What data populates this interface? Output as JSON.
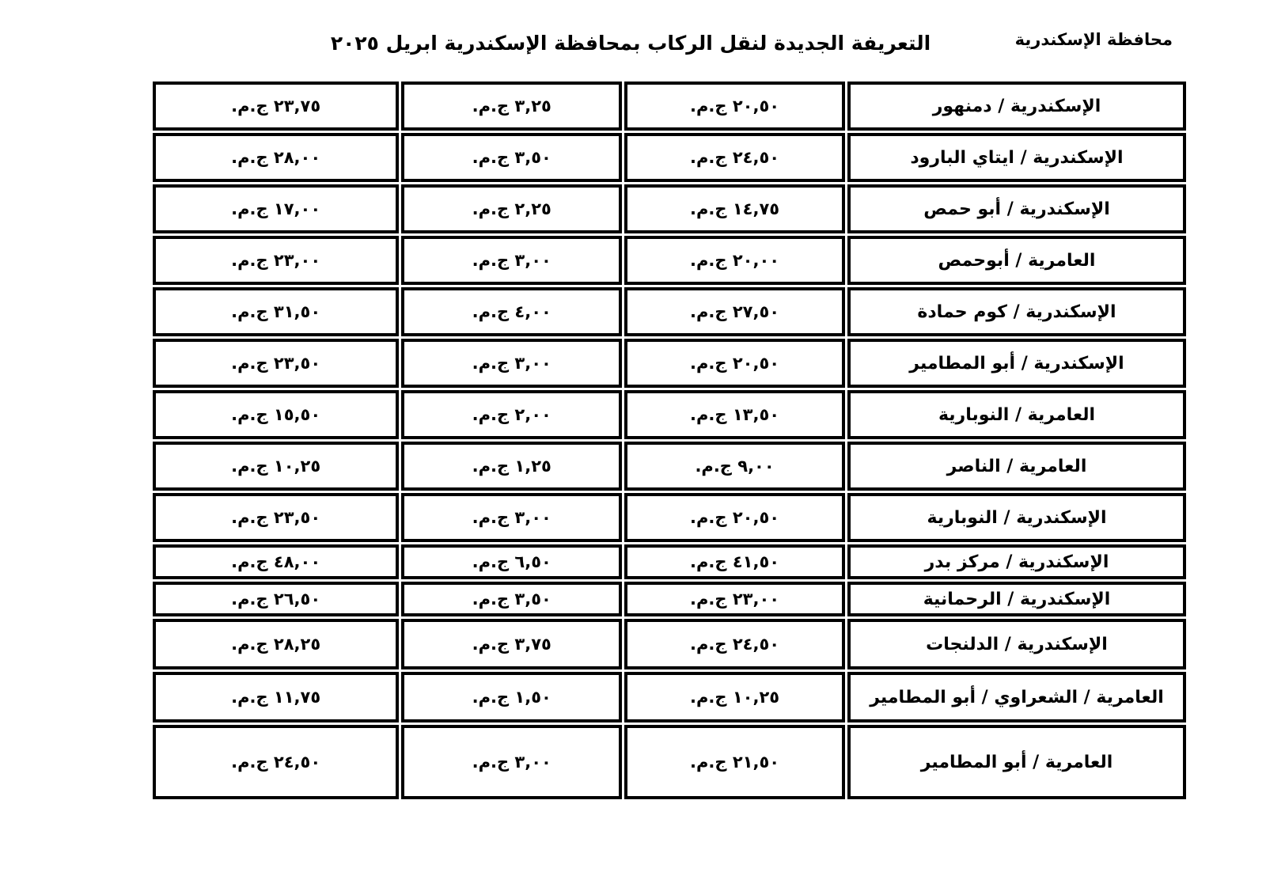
{
  "page": {
    "governorate": "محافظة الإسكندرية",
    "title": "التعريفة الجديدة لنقل الركاب بمحافظة الإسكندرية ابريل ٢٠٢٥"
  },
  "table": {
    "rows": [
      {
        "route": "الإسكندرية / دمنهور",
        "prices": [
          "٢٠,٥٠ ج.م.",
          "٣,٢٥ ج.م.",
          "٢٣,٧٥ ج.م."
        ]
      },
      {
        "route": "الإسكندرية / ايتاي البارود",
        "prices": [
          "٢٤,٥٠ ج.م.",
          "٣,٥٠ ج.م.",
          "٢٨,٠٠ ج.م."
        ]
      },
      {
        "route": "الإسكندرية / أبو حمص",
        "prices": [
          "١٤,٧٥ ج.م.",
          "٢,٢٥ ج.م.",
          "١٧,٠٠ ج.م."
        ]
      },
      {
        "route": "العامرية / أبوحمص",
        "prices": [
          "٢٠,٠٠ ج.م.",
          "٣,٠٠ ج.م.",
          "٢٣,٠٠ ج.م."
        ]
      },
      {
        "route": "الإسكندرية / كوم حمادة",
        "prices": [
          "٢٧,٥٠ ج.م.",
          "٤,٠٠ ج.م.",
          "٣١,٥٠ ج.م."
        ]
      },
      {
        "route": "الإسكندرية / أبو المطامير",
        "prices": [
          "٢٠,٥٠ ج.م.",
          "٣,٠٠ ج.م.",
          "٢٣,٥٠ ج.م."
        ]
      },
      {
        "route": "العامرية / النوبارية",
        "prices": [
          "١٣,٥٠ ج.م.",
          "٢,٠٠ ج.م.",
          "١٥,٥٠ ج.م."
        ]
      },
      {
        "route": "العامرية / الناصر",
        "prices": [
          "٩,٠٠ ج.م.",
          "١,٢٥ ج.م.",
          "١٠,٢٥ ج.م."
        ]
      },
      {
        "route": "الإسكندرية / النوبارية",
        "prices": [
          "٢٠,٥٠ ج.م.",
          "٣,٠٠ ج.م.",
          "٢٣,٥٠ ج.م."
        ]
      },
      {
        "route": "الإسكندرية / مركز بدر",
        "prices": [
          "٤١,٥٠ ج.م.",
          "٦,٥٠ ج.م.",
          "٤٨,٠٠ ج.م."
        ]
      },
      {
        "route": "الإسكندرية / الرحمانية",
        "prices": [
          "٢٣,٠٠ ج.م.",
          "٣,٥٠ ج.م.",
          "٢٦,٥٠ ج.م."
        ]
      },
      {
        "route": "الإسكندرية / الدلنجات",
        "prices": [
          "٢٤,٥٠ ج.م.",
          "٣,٧٥ ج.م.",
          "٢٨,٢٥ ج.م."
        ]
      },
      {
        "route": "العامرية / الشعراوي / أبو المطامير",
        "prices": [
          "١٠,٢٥ ج.م.",
          "١,٥٠ ج.م.",
          "١١,٧٥ ج.م."
        ]
      },
      {
        "route": "العامرية / أبو المطامير",
        "prices": [
          "٢١,٥٠ ج.م.",
          "٣,٠٠ ج.م.",
          "٢٤,٥٠ ج.م."
        ]
      }
    ]
  }
}
